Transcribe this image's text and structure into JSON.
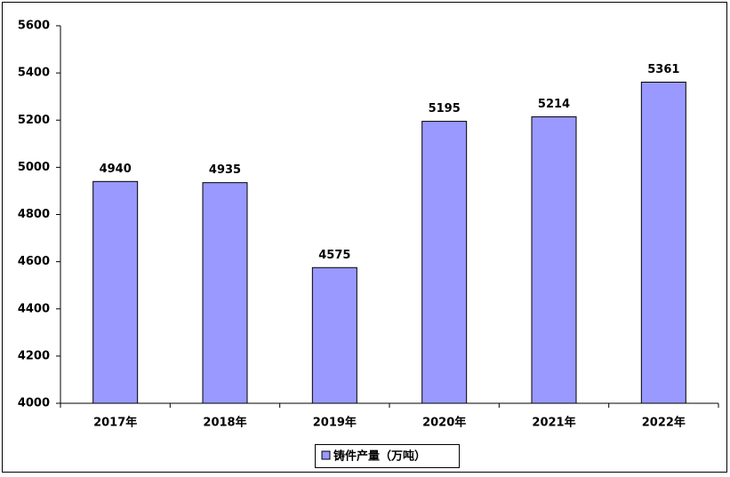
{
  "chart_data": {
    "type": "bar",
    "categories": [
      "2017年",
      "2018年",
      "2019年",
      "2020年",
      "2021年",
      "2022年"
    ],
    "series": [
      {
        "name": "铸件产量（万吨）",
        "color": "#9999ff",
        "values": [
          4940,
          4935,
          4575,
          5195,
          5214,
          5361
        ]
      }
    ],
    "ylim": [
      4000,
      5600
    ],
    "yticks": [
      4000,
      4200,
      4400,
      4600,
      4800,
      5000,
      5200,
      5400,
      5600
    ],
    "grid": false,
    "legend": "bottom"
  }
}
